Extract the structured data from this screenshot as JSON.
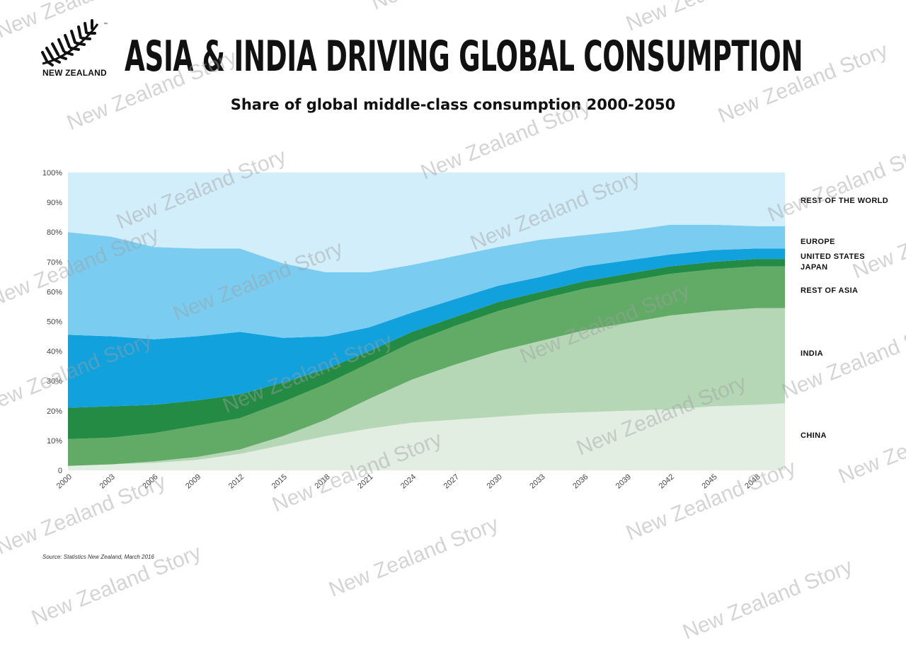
{
  "header": {
    "logo_text": "NEW ZEALAND",
    "title": "ASIA & INDIA DRIVING GLOBAL CONSUMPTION",
    "subtitle": "Share of global middle-class consumption 2000-2050"
  },
  "source": "Source: Statistics New Zealand, March 2016",
  "watermark": "New Zealand Story",
  "chart_data": {
    "type": "area",
    "stacked": true,
    "x": [
      2000,
      2003,
      2006,
      2009,
      2012,
      2015,
      2018,
      2021,
      2024,
      2027,
      2030,
      2033,
      2036,
      2039,
      2042,
      2045,
      2048,
      2050
    ],
    "x_tick_labels": [
      "2000",
      "2003",
      "2006",
      "2009",
      "2012",
      "2015",
      "2018",
      "2021",
      "2024",
      "2027",
      "2030",
      "2033",
      "2036",
      "2039",
      "2042",
      "2045",
      "2048"
    ],
    "y_tick_labels": [
      "0",
      "10%",
      "20%",
      "30%",
      "40%",
      "50%",
      "60%",
      "70%",
      "80%",
      "90%",
      "100%"
    ],
    "ylim": [
      0,
      100
    ],
    "series": [
      {
        "name": "CHINA",
        "color": "#e2eee2",
        "values": [
          1.5,
          2,
          2.5,
          3.5,
          5.5,
          8.5,
          11.5,
          14,
          16,
          17,
          18,
          19,
          19.5,
          20,
          20.5,
          21.5,
          22,
          22.5
        ]
      },
      {
        "name": "INDIA",
        "color": "#b5d7b6",
        "values": [
          0,
          0,
          0.5,
          1,
          1.5,
          3,
          5.5,
          10,
          14.5,
          18.5,
          22,
          24.5,
          27.5,
          29.5,
          31.5,
          32,
          32.5,
          32
        ]
      },
      {
        "name": "REST OF ASIA",
        "color": "#62ab67",
        "values": [
          9,
          9,
          9.5,
          10.5,
          10.5,
          11.5,
          12,
          12,
          12.5,
          13,
          13.5,
          14,
          14,
          14,
          14,
          14,
          14,
          14
        ]
      },
      {
        "name": "JAPAN",
        "color": "#238b44",
        "values": [
          10.5,
          10.5,
          9.5,
          8.5,
          8,
          6.5,
          5,
          4,
          3.5,
          3,
          3,
          2.5,
          2.5,
          2.5,
          2.5,
          2.5,
          2.5,
          2.5
        ]
      },
      {
        "name": "UNITED STATES",
        "color": "#11a1dc",
        "values": [
          24.5,
          23.5,
          22,
          21.5,
          21,
          15,
          11,
          8,
          6.5,
          6,
          5.5,
          5,
          5,
          4.5,
          4,
          4,
          3.5,
          3.5
        ]
      },
      {
        "name": "EUROPE",
        "color": "#7acdf0",
        "values": [
          34.5,
          33.5,
          31,
          29.5,
          28,
          25,
          21.5,
          18.5,
          16,
          14.5,
          13,
          12.5,
          10.5,
          10,
          10,
          8.5,
          7.5,
          7.5
        ]
      },
      {
        "name": "REST OF THE WORLD",
        "color": "#d2eefa",
        "values": [
          20,
          21.5,
          25,
          25.5,
          25.5,
          30.5,
          33.5,
          33.5,
          31,
          28,
          25,
          22.5,
          21,
          19.5,
          17.5,
          17.5,
          18,
          18
        ]
      }
    ],
    "legend_labels": [
      "REST OF THE WORLD",
      "EUROPE",
      "UNITED STATES",
      "JAPAN",
      "REST OF ASIA",
      "INDIA",
      "CHINA"
    ],
    "legend_placement": "right",
    "grid": false
  }
}
